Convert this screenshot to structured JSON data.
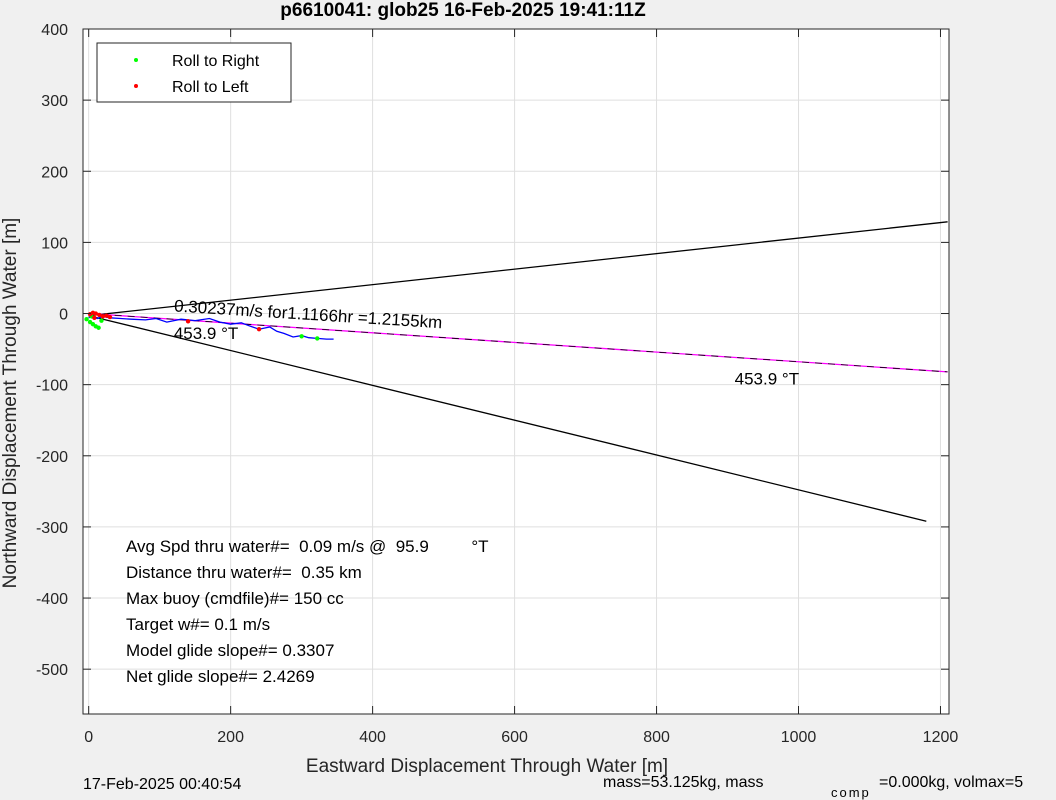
{
  "chart_data": {
    "type": "line",
    "title": "p6610041: glob25 16-Feb-2025 19:41:11Z",
    "xlabel": "Eastward Displacement Through Water [m]",
    "ylabel": "Northward Displacement Through Water [m]",
    "xlim": [
      -8,
      1212
    ],
    "ylim": [
      -563,
      400
    ],
    "xticks": [
      0,
      200,
      400,
      600,
      800,
      1000,
      1200
    ],
    "xtick_labels": [
      "0",
      "200",
      "400",
      "600",
      "800",
      "1000",
      "1200"
    ],
    "yticks": [
      400,
      300,
      200,
      100,
      0,
      -100,
      -200,
      -300,
      -400,
      -500
    ],
    "ytick_labels": [
      "400",
      "300",
      "200",
      "100",
      "0",
      "-100",
      "-200",
      "-300",
      "-400",
      "-500"
    ],
    "grid": true,
    "legend": {
      "location": "top-left",
      "entries": [
        {
          "label": "Roll to Right",
          "color": "#00ff00"
        },
        {
          "label": "Roll to Left",
          "color": "#ff0000"
        }
      ]
    },
    "series": [
      {
        "role": "cone-upper",
        "color": "#000000",
        "points": [
          [
            0,
            -3
          ],
          [
            1210,
            129
          ]
        ]
      },
      {
        "role": "cone-lower",
        "color": "#000000",
        "points": [
          [
            0,
            -3
          ],
          [
            1180,
            -292
          ]
        ]
      },
      {
        "role": "heading-line",
        "color": "#ff00ff",
        "points": [
          [
            0,
            0
          ],
          [
            1210,
            -82
          ]
        ]
      },
      {
        "role": "track",
        "color": "#0000ff",
        "points": [
          [
            0,
            -6
          ],
          [
            5,
            -3
          ],
          [
            12,
            -7
          ],
          [
            20,
            -4
          ],
          [
            30,
            -6
          ],
          [
            45,
            -7
          ],
          [
            60,
            -8
          ],
          [
            80,
            -9
          ],
          [
            95,
            -7
          ],
          [
            110,
            -12
          ],
          [
            130,
            -8
          ],
          [
            150,
            -10
          ],
          [
            170,
            -7
          ],
          [
            185,
            -12
          ],
          [
            200,
            -15
          ],
          [
            215,
            -13
          ],
          [
            228,
            -18
          ],
          [
            240,
            -22
          ],
          [
            255,
            -19
          ],
          [
            265,
            -25
          ],
          [
            275,
            -28
          ],
          [
            288,
            -33
          ],
          [
            300,
            -31
          ],
          [
            310,
            -34
          ],
          [
            322,
            -35
          ],
          [
            335,
            -36
          ],
          [
            345,
            -36
          ]
        ]
      }
    ],
    "roll_points": {
      "right": [
        [
          -3,
          -8
        ],
        [
          2,
          -12
        ],
        [
          6,
          -15
        ],
        [
          10,
          -18
        ],
        [
          14,
          -20
        ],
        [
          18,
          -10
        ],
        [
          4,
          -4
        ],
        [
          300,
          -32
        ],
        [
          322,
          -35
        ]
      ],
      "left": [
        [
          2,
          -1
        ],
        [
          6,
          1
        ],
        [
          10,
          0
        ],
        [
          15,
          -2
        ],
        [
          20,
          -4
        ],
        [
          25,
          -3
        ],
        [
          30,
          -5
        ],
        [
          8,
          -6
        ],
        [
          140,
          -11
        ],
        [
          240,
          -22
        ]
      ]
    },
    "annotations": [
      {
        "text": "0.30237m/s for1.1166hr =1.2155km",
        "x": 120,
        "y": 3,
        "rotation_deg": 3.6
      },
      {
        "text": "453.9  °T",
        "x": 120,
        "y": -36
      },
      {
        "text": "453.9  °T",
        "x": 910,
        "y": -100
      }
    ],
    "stats": [
      "Avg Spd thru water#=  0.09 m/s @  95.9         °T",
      "Distance thru water#=  0.35 km",
      "Max buoy (cmdfile)#= 150 cc",
      "Target w#= 0.1 m/s",
      "Model glide slope#= 0.3307",
      "Net glide slope#= 2.4269"
    ]
  },
  "footer": {
    "left": "17-Feb-2025 00:40:54",
    "right": "mass=53.125kg, mass",
    "subscript": "comp",
    "right_tail": "=0.000kg, volmax=5"
  }
}
